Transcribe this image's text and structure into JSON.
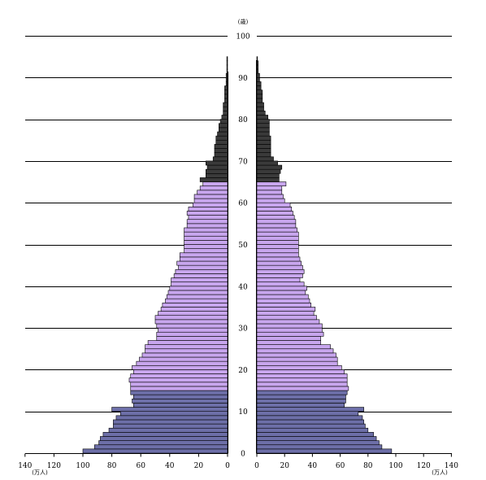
{
  "chart_data": {
    "type": "bar",
    "orientation": "population-pyramid",
    "age_axis": {
      "label": "(歳)",
      "range": [
        0,
        100
      ],
      "ticks": [
        0,
        10,
        20,
        30,
        40,
        50,
        60,
        70,
        80,
        90,
        100
      ]
    },
    "value_axis": {
      "unit": "(万人)",
      "range": [
        0,
        140
      ],
      "ticks": [
        0,
        20,
        40,
        60,
        80,
        100,
        120,
        140
      ]
    },
    "grid": true,
    "age_group_colors": {
      "0-14": "#6d6fa8",
      "15-64": "#c8a6ee",
      "65+": "#3a3a3a"
    },
    "ages": [
      0,
      1,
      2,
      3,
      4,
      5,
      6,
      7,
      8,
      9,
      10,
      11,
      12,
      13,
      14,
      15,
      16,
      17,
      18,
      19,
      20,
      21,
      22,
      23,
      24,
      25,
      26,
      27,
      28,
      29,
      30,
      31,
      32,
      33,
      34,
      35,
      36,
      37,
      38,
      39,
      40,
      41,
      42,
      43,
      44,
      45,
      46,
      47,
      48,
      49,
      50,
      51,
      52,
      53,
      54,
      55,
      56,
      57,
      58,
      59,
      60,
      61,
      62,
      63,
      64,
      65,
      66,
      67,
      68,
      69,
      70,
      71,
      72,
      73,
      74,
      75,
      76,
      77,
      78,
      79,
      80,
      81,
      82,
      83,
      84,
      85,
      86,
      87,
      88,
      89,
      90,
      91,
      92,
      93,
      94
    ],
    "series": [
      {
        "side": "left",
        "values": [
          100,
          92,
          89,
          88,
          86,
          82,
          79,
          79,
          77,
          74,
          80,
          65,
          66,
          65,
          67,
          67,
          67,
          68,
          67,
          65,
          66,
          63,
          61,
          59,
          57,
          57,
          55,
          49,
          49,
          48,
          49,
          50,
          50,
          48,
          46,
          45,
          43,
          42,
          41,
          40,
          39,
          39,
          37,
          36,
          34,
          35,
          33,
          33,
          30,
          30,
          30,
          30,
          30,
          30,
          28,
          28,
          27,
          28,
          27,
          24,
          23,
          23,
          21,
          19,
          17,
          19,
          15,
          15,
          14,
          15,
          10,
          9,
          9,
          9,
          8,
          8,
          7,
          6,
          6,
          5,
          4,
          3,
          3,
          3,
          2,
          2,
          2,
          2,
          1,
          1,
          1,
          0.5,
          0.5,
          0.5,
          0.5
        ]
      },
      {
        "side": "right",
        "values": [
          97,
          90,
          88,
          86,
          84,
          80,
          78,
          77,
          76,
          73,
          77,
          63,
          64,
          64,
          65,
          66,
          65,
          65,
          65,
          63,
          61,
          58,
          58,
          57,
          55,
          53,
          46,
          46,
          48,
          47,
          47,
          45,
          43,
          41,
          42,
          39,
          38,
          37,
          35,
          36,
          34,
          31,
          33,
          34,
          33,
          32,
          31,
          30,
          30,
          30,
          30,
          30,
          30,
          29,
          28,
          28,
          27,
          26,
          25,
          24,
          20,
          19,
          18,
          18,
          21,
          16,
          16,
          17,
          18,
          15,
          12,
          10,
          10,
          10,
          10,
          10,
          9,
          9,
          9,
          9,
          8,
          6,
          5,
          5,
          4,
          4,
          4,
          3,
          3,
          2,
          2,
          1,
          1,
          1,
          0.5
        ]
      }
    ]
  }
}
